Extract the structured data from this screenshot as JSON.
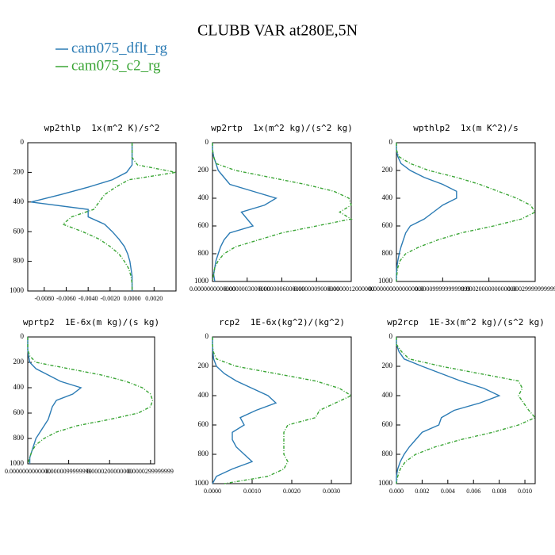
{
  "title": "CLUBB VAR at280E,5N",
  "chart_data": [
    {
      "type": "line",
      "title": "wp2thlp  1x(m^2 K)/s^2",
      "y": [
        0,
        50,
        100,
        150,
        200,
        250,
        300,
        350,
        400,
        450,
        500,
        550,
        600,
        650,
        700,
        750,
        800,
        850,
        900,
        950,
        1000
      ],
      "ylim": [
        1000,
        0
      ],
      "yticks": [
        0,
        200,
        400,
        600,
        800,
        1000
      ],
      "xlim": [
        -0.0095,
        0.004
      ],
      "xticks": [
        {
          "value": -0.008,
          "label": "-0.0080"
        },
        {
          "value": -0.006,
          "label": "-0.0060"
        },
        {
          "value": -0.004,
          "label": "-0.0040"
        },
        {
          "value": -0.002,
          "label": "-0.0020"
        },
        {
          "value": 0,
          "label": "0.0000"
        },
        {
          "value": 0.002,
          "label": "0.0020"
        }
      ],
      "series": [
        {
          "name": "cam075_dflt_rg",
          "color": "#2b7bb4",
          "dashed": false,
          "values": [
            0,
            0,
            0,
            0,
            -0.0005,
            -0.0018,
            -0.004,
            -0.0065,
            -0.0092,
            -0.004,
            -0.004,
            -0.0025,
            -0.0018,
            -0.0012,
            -0.0007,
            -0.0004,
            -0.0002,
            -0.0001,
            0,
            0,
            0
          ]
        },
        {
          "name": "cam075_c2_rg",
          "color": "#3aa535",
          "dashed": true,
          "values": [
            0,
            0,
            0,
            0.0005,
            0.004,
            -0.0003,
            -0.0015,
            -0.0025,
            -0.003,
            -0.0035,
            -0.0055,
            -0.0063,
            -0.0045,
            -0.003,
            -0.002,
            -0.0012,
            -0.0007,
            -0.0003,
            -0.0001,
            0,
            0
          ]
        }
      ]
    },
    {
      "type": "line",
      "title": "wp2rtp  1x(m^2 kg)/(s^2 kg)",
      "y": [
        0,
        50,
        100,
        150,
        200,
        250,
        300,
        350,
        400,
        450,
        500,
        550,
        600,
        650,
        700,
        750,
        800,
        850,
        900,
        950,
        1000
      ],
      "ylim": [
        1000,
        0
      ],
      "yticks": [
        0,
        200,
        400,
        600,
        800,
        1000
      ],
      "xlim": [
        0,
        1.2e-06
      ],
      "xticks": [
        {
          "value": 0,
          "label": "0.0000000000000"
        },
        {
          "value": 3e-07,
          "label": "0.0000003000000"
        },
        {
          "value": 6e-07,
          "label": "0.0000006000000"
        },
        {
          "value": 9e-07,
          "label": "0.0000009000000"
        },
        {
          "value": 1.2e-06,
          "label": "0.0000012000000"
        }
      ],
      "series": [
        {
          "name": "cam075_dflt_rg",
          "color": "#2b7bb4",
          "dashed": false,
          "values": [
            0,
            0,
            1e-08,
            3e-08,
            5e-08,
            1e-07,
            1.5e-07,
            3.5e-07,
            5.5e-07,
            4.5e-07,
            2.5e-07,
            3e-07,
            3.5e-07,
            1.5e-07,
            1e-07,
            7e-08,
            5e-08,
            3e-08,
            2e-08,
            1e-08,
            2e-08
          ]
        },
        {
          "name": "cam075_c2_rg",
          "color": "#3aa535",
          "dashed": true,
          "values": [
            0,
            0,
            1e-08,
            3e-08,
            2e-07,
            5e-07,
            8e-07,
            1.05e-06,
            1.18e-06,
            1.2e-06,
            1.1e-06,
            1.2e-06,
            9e-07,
            6e-07,
            4e-07,
            2e-07,
            1e-07,
            5e-08,
            2e-08,
            1e-08,
            0
          ]
        }
      ]
    },
    {
      "type": "line",
      "title": "wpthlp2  1x(m K^2)/s",
      "y": [
        0,
        50,
        100,
        150,
        200,
        250,
        300,
        350,
        400,
        450,
        500,
        550,
        600,
        650,
        700,
        750,
        800,
        850,
        900,
        950,
        1000
      ],
      "ylim": [
        1000,
        0
      ],
      "yticks": [
        0,
        200,
        400,
        600,
        800,
        1000
      ],
      "xlim": [
        0,
        0.0003
      ],
      "xticks": [
        {
          "value": 0,
          "label": "0.0000000000000000"
        },
        {
          "value": 0.0001,
          "label": "0.0000999999999999"
        },
        {
          "value": 0.0002,
          "label": "0.0002000000000000"
        },
        {
          "value": 0.0003,
          "label": "0.0002999999999999"
        }
      ],
      "series": [
        {
          "name": "cam075_dflt_rg",
          "color": "#2b7bb4",
          "dashed": false,
          "values": [
            0,
            0,
            3e-06,
            1e-05,
            3e-05,
            6e-05,
            0.0001,
            0.00013,
            0.00013,
            0.0001,
            8e-05,
            6e-05,
            3e-05,
            2e-05,
            1.5e-05,
            1e-05,
            6e-06,
            3e-06,
            1e-06,
            0,
            0
          ]
        },
        {
          "name": "cam075_c2_rg",
          "color": "#3aa535",
          "dashed": true,
          "values": [
            0,
            0,
            5e-06,
            3e-05,
            7e-05,
            0.00013,
            0.00018,
            0.00022,
            0.00026,
            0.00029,
            0.0003,
            0.00027,
            0.00021,
            0.00014,
            9e-05,
            5e-05,
            2e-05,
            8e-06,
            3e-06,
            1e-06,
            0
          ]
        }
      ]
    },
    {
      "type": "line",
      "title": "wprtp2  1E-6x(m kg)/(s kg)",
      "y": [
        0,
        50,
        100,
        150,
        200,
        250,
        300,
        350,
        400,
        450,
        500,
        550,
        600,
        650,
        700,
        750,
        800,
        850,
        900,
        950,
        1000
      ],
      "ylim": [
        1000,
        0
      ],
      "yticks": [
        0,
        200,
        400,
        600,
        800,
        1000
      ],
      "xlim": [
        0,
        3.1e-05
      ],
      "xticks": [
        {
          "value": 0,
          "label": "0.0000000000000"
        },
        {
          "value": 1e-05,
          "label": "0.0000099999999"
        },
        {
          "value": 2e-05,
          "label": "0.0000200000000"
        },
        {
          "value": 3e-05,
          "label": "0.0000299999999"
        }
      ],
      "series": [
        {
          "name": "cam075_dflt_rg",
          "color": "#2b7bb4",
          "dashed": false,
          "values": [
            0,
            0,
            0,
            2e-07,
            5e-07,
            2e-06,
            5e-06,
            8e-06,
            1.3e-05,
            1.1e-05,
            7e-06,
            6e-06,
            5.5e-06,
            5e-06,
            4e-06,
            3e-06,
            2e-06,
            1.5e-06,
            1e-06,
            5e-07,
            5e-07
          ]
        },
        {
          "name": "cam075_c2_rg",
          "color": "#3aa535",
          "dashed": true,
          "values": [
            0,
            0,
            0,
            5e-07,
            2e-06,
            1e-05,
            1.8e-05,
            2.4e-05,
            2.8e-05,
            3e-05,
            3.05e-05,
            3e-05,
            2.7e-05,
            2e-05,
            1.2e-05,
            7e-06,
            4e-06,
            2e-06,
            1e-06,
            5e-07,
            0
          ]
        }
      ]
    },
    {
      "type": "line",
      "title": "rcp2  1E-6x(kg^2)/(kg^2)",
      "y": [
        0,
        50,
        100,
        150,
        200,
        250,
        300,
        350,
        400,
        450,
        500,
        550,
        600,
        650,
        700,
        750,
        800,
        850,
        900,
        950,
        1000
      ],
      "ylim": [
        1000,
        0
      ],
      "yticks": [
        0,
        200,
        400,
        600,
        800,
        1000
      ],
      "xlim": [
        0,
        0.0035
      ],
      "xticks": [
        {
          "value": 0,
          "label": "0.0000"
        },
        {
          "value": 0.001,
          "label": "0.0010"
        },
        {
          "value": 0.002,
          "label": "0.0020"
        },
        {
          "value": 0.003,
          "label": "0.0030"
        }
      ],
      "series": [
        {
          "name": "cam075_dflt_rg",
          "color": "#2b7bb4",
          "dashed": false,
          "values": [
            0,
            0,
            1e-05,
            3e-05,
            0.0001,
            0.0003,
            0.0006,
            0.001,
            0.0014,
            0.0016,
            0.0011,
            0.0007,
            0.0008,
            0.0005,
            0.0005,
            0.0006,
            0.0008,
            0.001,
            0.0005,
            0.0001,
            0
          ]
        },
        {
          "name": "cam075_c2_rg",
          "color": "#3aa535",
          "dashed": true,
          "values": [
            0,
            0,
            2e-05,
            0.0001,
            0.0006,
            0.0016,
            0.0026,
            0.0032,
            0.0035,
            0.0031,
            0.0027,
            0.0026,
            0.0019,
            0.0018,
            0.0018,
            0.0018,
            0.0018,
            0.0019,
            0.0018,
            0.0014,
            0.0003
          ]
        }
      ]
    },
    {
      "type": "line",
      "title": "wp2rcp  1E-3x(m^2 kg)/(s^2 kg)",
      "y": [
        0,
        50,
        100,
        150,
        200,
        250,
        300,
        350,
        400,
        450,
        500,
        550,
        600,
        650,
        700,
        750,
        800,
        850,
        900,
        950,
        1000
      ],
      "ylim": [
        1000,
        0
      ],
      "yticks": [
        0,
        200,
        400,
        600,
        800,
        1000
      ],
      "xlim": [
        0,
        0.0108
      ],
      "xticks": [
        {
          "value": 0,
          "label": "0.000"
        },
        {
          "value": 0.002,
          "label": "0.002"
        },
        {
          "value": 0.004,
          "label": "0.004"
        },
        {
          "value": 0.006,
          "label": "0.006"
        },
        {
          "value": 0.008,
          "label": "0.008"
        },
        {
          "value": 0.01,
          "label": "0.010"
        }
      ],
      "series": [
        {
          "name": "cam075_dflt_rg",
          "color": "#2b7bb4",
          "dashed": false,
          "values": [
            0,
            0,
            0.0002,
            0.0006,
            0.002,
            0.0035,
            0.005,
            0.0068,
            0.008,
            0.0065,
            0.0045,
            0.0035,
            0.0033,
            0.002,
            0.0015,
            0.001,
            0.0006,
            0.0003,
            0.0001,
            0,
            0
          ]
        },
        {
          "name": "cam075_c2_rg",
          "color": "#3aa535",
          "dashed": true,
          "values": [
            0,
            0,
            0.0004,
            0.001,
            0.0035,
            0.0065,
            0.0095,
            0.0098,
            0.0095,
            0.0099,
            0.0103,
            0.0108,
            0.0095,
            0.0075,
            0.005,
            0.003,
            0.0015,
            0.0007,
            0.0003,
            0.0001,
            0
          ]
        }
      ]
    }
  ]
}
